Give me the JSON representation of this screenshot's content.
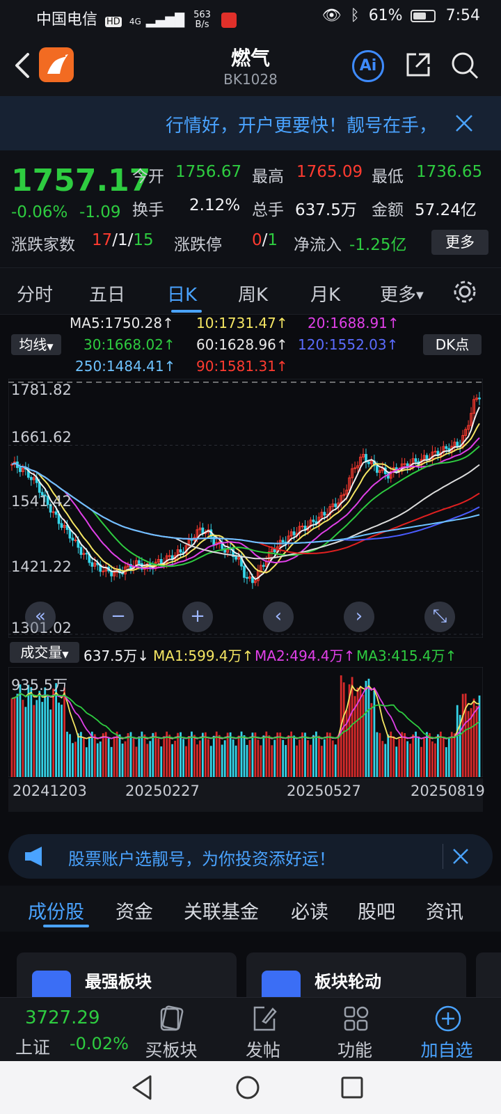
{
  "status_bar": {
    "carrier": "中国电信",
    "hd": "HD",
    "net": "4G",
    "speed": "563",
    "speed_unit": "B/s",
    "battery": "61%",
    "time": "7:54"
  },
  "header": {
    "title": "燃气",
    "code": "BK1028",
    "ai_label": "Ai"
  },
  "promo": {
    "text": "行情好，开户更要快！靓号在手，"
  },
  "quote": {
    "price": "1757.17",
    "change_pct": "-0.06%",
    "change": "-1.09",
    "open_label": "今开",
    "open": "1756.67",
    "high_label": "最高",
    "high": "1765.09",
    "low_label": "最低",
    "low": "1736.65",
    "turnover_label": "换手",
    "turnover": "2.12%",
    "volume_label": "总手",
    "volume": "637.5万",
    "amount_label": "金额",
    "amount": "57.24亿",
    "advdec_label": "涨跌家数",
    "adv": "17",
    "sep1": "/",
    "flat": "1",
    "sep2": "/",
    "dec": "15",
    "limit_label": "涨跌停",
    "limit_up": "0",
    "sep3": "/",
    "limit_down": "1",
    "netflow_label": "净流入",
    "netflow": "-1.25亿",
    "more_label": "更多"
  },
  "ktabs": {
    "items": [
      "分时",
      "五日",
      "日K",
      "周K",
      "月K",
      "更多"
    ],
    "active": 2
  },
  "indicators": {
    "junxian": "均线",
    "dk": "DK点",
    "ma5": "MA5:1750.28↑",
    "ma10": "10:1731.47↑",
    "ma20": "20:1688.91↑",
    "ma30": "30:1668.02↑",
    "ma60": "60:1628.96↑",
    "ma120": "120:1552.03↑",
    "ma250": "250:1484.41↑",
    "ma90": "90:1581.31↑"
  },
  "chart_data": {
    "type": "candlestick",
    "y_ticks": [
      "1781.82",
      "1661.62",
      "1541.42",
      "1421.22",
      "1301.02"
    ],
    "ylim": [
      1301.02,
      1781.82
    ],
    "x_ticks": [
      "20241203",
      "20250227",
      "20250527",
      "20250819"
    ],
    "close_series": [
      1625,
      1620,
      1612,
      1600,
      1585,
      1560,
      1540,
      1520,
      1505,
      1490,
      1470,
      1455,
      1440,
      1430,
      1425,
      1420,
      1418,
      1422,
      1430,
      1436,
      1432,
      1428,
      1435,
      1440,
      1446,
      1452,
      1458,
      1470,
      1490,
      1500,
      1498,
      1480,
      1470,
      1462,
      1456,
      1440,
      1410,
      1400,
      1420,
      1440,
      1460,
      1470,
      1480,
      1490,
      1500,
      1505,
      1512,
      1520,
      1530,
      1540,
      1552,
      1562,
      1600,
      1625,
      1640,
      1630,
      1618,
      1612,
      1605,
      1615,
      1620,
      1626,
      1630,
      1632,
      1640,
      1645,
      1650,
      1655,
      1660,
      1665,
      1690,
      1740,
      1757
    ]
  },
  "volume": {
    "label": "成交量",
    "vol": "637.5万↓",
    "ma1": "MA1:599.4万↑",
    "ma2": "MA2:494.4万↑",
    "ma3": "MA3:415.4万↑",
    "max_label": "935.5万"
  },
  "promo2": {
    "text": "股票账户选靓号，为你投资添好运！"
  },
  "btabs": {
    "items": [
      "成份股",
      "资金",
      "关联基金",
      "必读",
      "股吧",
      "资讯"
    ],
    "active": 0
  },
  "cards": {
    "c1": "最强板块",
    "c2": "板块轮动"
  },
  "bottombar": {
    "index_value": "3727.29",
    "index_name": "上证",
    "index_change": "-0.02%",
    "buy_label": "买板块",
    "post_label": "发帖",
    "func_label": "功能",
    "add_label": "加自选"
  }
}
